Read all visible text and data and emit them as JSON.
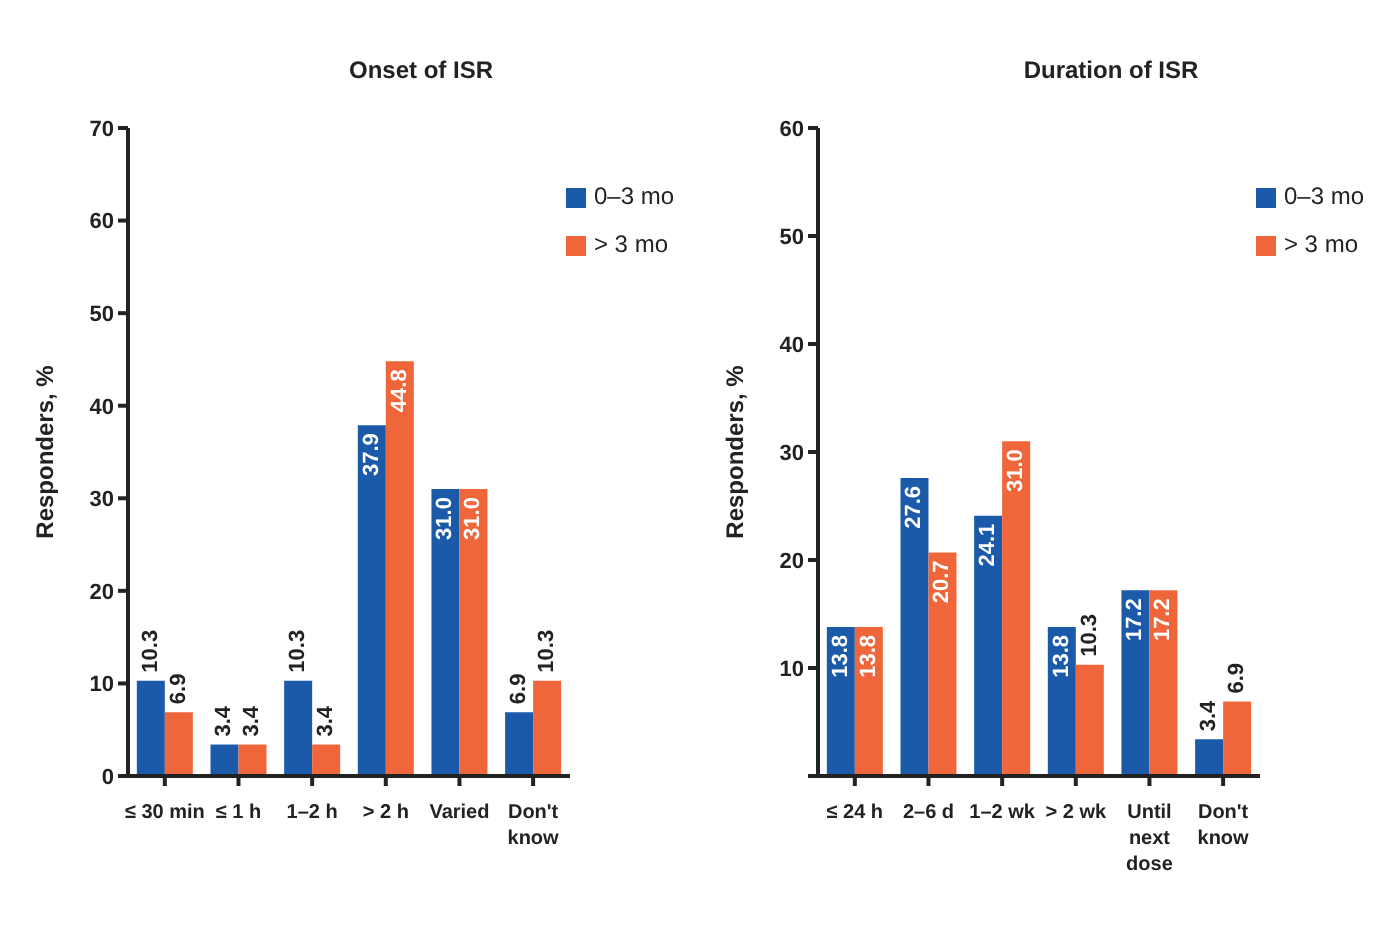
{
  "chart_data": [
    {
      "type": "bar",
      "title": "Onset of ISR",
      "ylabel": "Responders, %",
      "categories": [
        "≤ 30 min",
        "≤ 1 h",
        "1–2 h",
        "> 2 h",
        "Varied",
        "Don't know"
      ],
      "series": [
        {
          "name": "0–3 mo",
          "color": "#1a5aa8",
          "values": [
            10.3,
            3.4,
            10.3,
            37.9,
            31.0,
            6.9
          ],
          "value_labels": [
            "10.3",
            "3.4",
            "10.3",
            "37.9",
            "31.0",
            "6.9"
          ]
        },
        {
          "name": "> 3 mo",
          "color": "#ef663a",
          "values": [
            6.9,
            3.4,
            3.4,
            44.8,
            31.0,
            10.3
          ],
          "value_labels": [
            "6.9",
            "3.4",
            "3.4",
            "44.8",
            "31.0",
            "10.3"
          ]
        }
      ],
      "ylim": [
        0,
        70
      ],
      "yticks": [
        0,
        10,
        20,
        30,
        40,
        50,
        60,
        70
      ],
      "legend": "top right"
    },
    {
      "type": "bar",
      "title": "Duration of ISR",
      "ylabel": "Responders, %",
      "categories": [
        "≤ 24 h",
        "2–6 d",
        "1–2 wk",
        "> 2 wk",
        "Until next dose",
        "Don't know"
      ],
      "series": [
        {
          "name": "0–3 mo",
          "color": "#1a5aa8",
          "values": [
            13.8,
            27.6,
            24.1,
            13.8,
            17.2,
            3.4
          ],
          "value_labels": [
            "13.8",
            "27.6",
            "24.1",
            "13.8",
            "17.2",
            "3.4"
          ]
        },
        {
          "name": "> 3 mo",
          "color": "#ef663a",
          "values": [
            13.8,
            20.7,
            31.0,
            10.3,
            17.2,
            6.9
          ],
          "value_labels": [
            "13.8",
            "20.7",
            "31.0",
            "10.3",
            "17.2",
            "6.9"
          ]
        }
      ],
      "ylim": [
        0,
        60
      ],
      "yticks": [
        {
          "value": 0,
          "label": null
        },
        10,
        20,
        30,
        40,
        50,
        60
      ],
      "legend": "top right"
    }
  ]
}
